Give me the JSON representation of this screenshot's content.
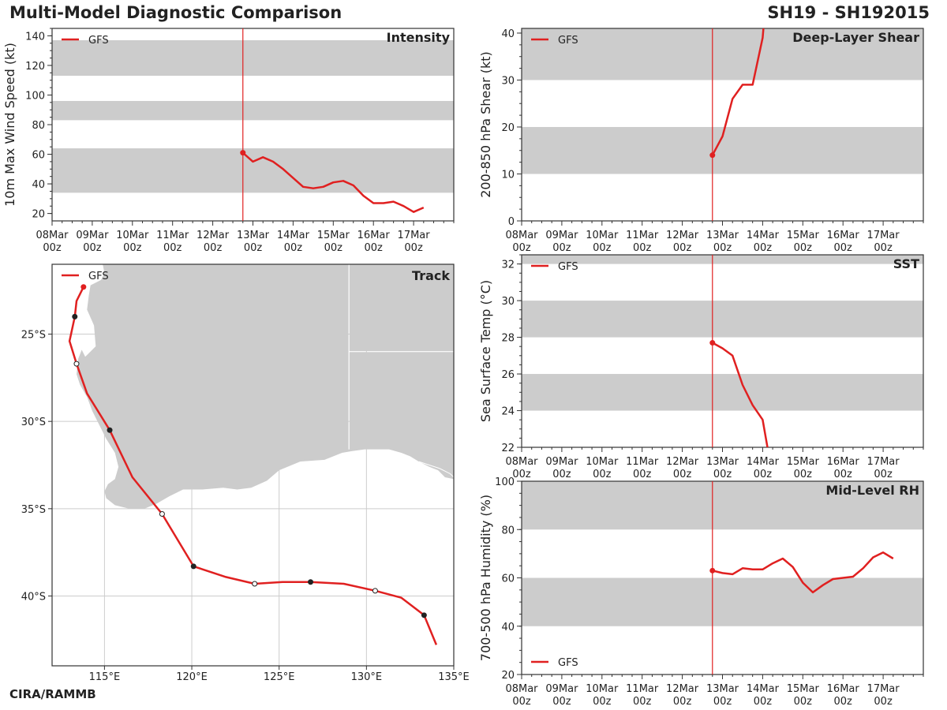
{
  "header": {
    "title": "Multi-Model Diagnostic Comparison",
    "storm": "SH19 - SH192015",
    "credit": "CIRA/RAMMB"
  },
  "colors": {
    "model": "#e02020",
    "band": "#cccccc",
    "land": "#cccccc",
    "axis": "#333333",
    "grid": "#cccccc"
  },
  "chart_data": [
    {
      "id": "intensity",
      "type": "line",
      "title": "Intensity",
      "xlabel": "",
      "ylabel": "10m Max Wind Speed (kt)",
      "xlim": [
        0,
        10
      ],
      "ylim": [
        15,
        145
      ],
      "yticks": [
        20,
        40,
        60,
        80,
        100,
        120,
        140
      ],
      "xtick_labels": [
        "08Mar 00z",
        "09Mar 00z",
        "10Mar 00z",
        "11Mar 00z",
        "12Mar 00z",
        "13Mar 00z",
        "14Mar 00z",
        "15Mar 00z",
        "16Mar 00z",
        "17Mar 00z"
      ],
      "bands": [
        [
          34,
          64
        ],
        [
          83,
          96
        ],
        [
          113,
          137
        ]
      ],
      "init_time": 4.75,
      "legend": [
        "GFS"
      ],
      "legend_loc": "top-left",
      "series": [
        {
          "name": "GFS",
          "x": [
            4.75,
            5.0,
            5.25,
            5.5,
            5.75,
            6.0,
            6.25,
            6.5,
            6.75,
            7.0,
            7.25,
            7.5,
            7.75,
            8.0,
            8.25,
            8.5,
            8.75,
            9.0,
            9.25
          ],
          "y": [
            61,
            55,
            58,
            55,
            50,
            44,
            38,
            37,
            38,
            41,
            42,
            39,
            32,
            27,
            27,
            28,
            25,
            21,
            24
          ]
        }
      ]
    },
    {
      "id": "shear",
      "type": "line",
      "title": "Deep-Layer Shear",
      "xlabel": "",
      "ylabel": "200-850 hPa Shear (kt)",
      "xlim": [
        0,
        10
      ],
      "ylim": [
        0,
        41
      ],
      "yticks": [
        0,
        10,
        20,
        30,
        40
      ],
      "xtick_labels": [
        "08Mar 00z",
        "09Mar 00z",
        "10Mar 00z",
        "11Mar 00z",
        "12Mar 00z",
        "13Mar 00z",
        "14Mar 00z",
        "15Mar 00z",
        "16Mar 00z",
        "17Mar 00z"
      ],
      "bands": [
        [
          10,
          20
        ],
        [
          30,
          41
        ]
      ],
      "init_time": 4.75,
      "legend": [
        "GFS"
      ],
      "legend_loc": "top-left",
      "series": [
        {
          "name": "GFS",
          "x": [
            4.75,
            5.0,
            5.25,
            5.5,
            5.75,
            6.0,
            6.02
          ],
          "y": [
            14,
            18,
            26,
            29,
            29,
            39,
            41
          ]
        }
      ]
    },
    {
      "id": "sst",
      "type": "line",
      "title": "SST",
      "xlabel": "",
      "ylabel": "Sea Surface Temp (°C)",
      "xlim": [
        0,
        10
      ],
      "ylim": [
        22,
        32.5
      ],
      "yticks": [
        22,
        24,
        26,
        28,
        30,
        32
      ],
      "xtick_labels": [
        "08Mar 00z",
        "09Mar 00z",
        "10Mar 00z",
        "11Mar 00z",
        "12Mar 00z",
        "13Mar 00z",
        "14Mar 00z",
        "15Mar 00z",
        "16Mar 00z",
        "17Mar 00z"
      ],
      "bands": [
        [
          24,
          26
        ],
        [
          28,
          30
        ],
        [
          32,
          32.5
        ]
      ],
      "init_time": 4.75,
      "legend": [
        "GFS"
      ],
      "legend_loc": "top-left",
      "series": [
        {
          "name": "GFS",
          "x": [
            4.75,
            5.0,
            5.25,
            5.5,
            5.75,
            6.0,
            6.12
          ],
          "y": [
            27.7,
            27.4,
            27.0,
            25.4,
            24.3,
            23.5,
            22.0
          ]
        }
      ]
    },
    {
      "id": "rh",
      "type": "line",
      "title": "Mid-Level RH",
      "xlabel": "",
      "ylabel": "700-500 hPa Humidity (%)",
      "xlim": [
        0,
        10
      ],
      "ylim": [
        20,
        100
      ],
      "yticks": [
        20,
        40,
        60,
        80,
        100
      ],
      "xtick_labels": [
        "08Mar 00z",
        "09Mar 00z",
        "10Mar 00z",
        "11Mar 00z",
        "12Mar 00z",
        "13Mar 00z",
        "14Mar 00z",
        "15Mar 00z",
        "16Mar 00z",
        "17Mar 00z"
      ],
      "bands": [
        [
          40,
          60
        ],
        [
          80,
          100
        ]
      ],
      "init_time": 4.75,
      "legend": [
        "GFS"
      ],
      "legend_loc": "bottom-left",
      "series": [
        {
          "name": "GFS",
          "x": [
            4.75,
            5.0,
            5.25,
            5.5,
            5.75,
            6.0,
            6.25,
            6.5,
            6.75,
            7.0,
            7.25,
            7.5,
            7.75,
            8.0,
            8.25,
            8.5,
            8.75,
            9.0,
            9.25
          ],
          "y": [
            63,
            62,
            61.5,
            64,
            63.5,
            63.5,
            66,
            68,
            64.5,
            58,
            54,
            57,
            59.5,
            60,
            60.5,
            64,
            68.5,
            70.5,
            68
          ]
        }
      ]
    },
    {
      "id": "track",
      "type": "line",
      "title": "Track",
      "xlabel": "",
      "ylabel": "",
      "xlim": [
        112,
        135
      ],
      "ylim": [
        -44,
        -21
      ],
      "xtick_labels": [
        "115°E",
        "120°E",
        "125°E",
        "130°E",
        "135°E"
      ],
      "xtick_values": [
        115,
        120,
        125,
        130,
        135
      ],
      "ytick_labels": [
        "25°S",
        "30°S",
        "35°S",
        "40°S"
      ],
      "ytick_values": [
        -25,
        -30,
        -35,
        -40
      ],
      "legend": [
        "GFS"
      ],
      "legend_loc": "top-left",
      "series": [
        {
          "name": "GFS",
          "lon": [
            113.8,
            113.4,
            113.3,
            113.0,
            113.4,
            114.0,
            115.3,
            116.6,
            118.3,
            120.1,
            121.9,
            123.6,
            125.2,
            126.8,
            128.7,
            130.5,
            132.0,
            133.3,
            134.0
          ],
          "lat": [
            -22.3,
            -23.1,
            -24.0,
            -25.4,
            -26.7,
            -28.4,
            -30.5,
            -33.2,
            -35.3,
            -38.3,
            -38.9,
            -39.3,
            -39.2,
            -39.2,
            -39.3,
            -39.7,
            -40.1,
            -41.1,
            -42.8
          ],
          "markers": [
            {
              "lon": 113.8,
              "lat": -22.3,
              "style": "red"
            },
            {
              "lon": 113.3,
              "lat": -24.0,
              "style": "filled"
            },
            {
              "lon": 113.4,
              "lat": -26.7,
              "style": "open"
            },
            {
              "lon": 115.3,
              "lat": -30.5,
              "style": "filled"
            },
            {
              "lon": 118.3,
              "lat": -35.3,
              "style": "open"
            },
            {
              "lon": 120.1,
              "lat": -38.3,
              "style": "filled"
            },
            {
              "lon": 123.6,
              "lat": -39.3,
              "style": "open"
            },
            {
              "lon": 126.8,
              "lat": -39.2,
              "style": "filled"
            },
            {
              "lon": 130.5,
              "lat": -39.7,
              "style": "open"
            },
            {
              "lon": 133.3,
              "lat": -41.1,
              "style": "filled"
            }
          ]
        }
      ],
      "land_outline": {
        "lon": [
          112.0,
          114.9,
          115.0,
          114.8,
          114.2,
          114.1,
          114.0,
          114.4,
          114.5,
          113.9,
          113.7,
          113.5,
          113.4,
          113.6,
          114.0,
          114.3,
          114.7,
          115.1,
          115.6,
          115.8,
          115.6,
          115.2,
          115.0,
          115.1,
          115.6,
          116.4,
          117.3,
          118.0,
          118.7,
          119.5,
          120.6,
          121.8,
          122.6,
          123.4,
          124.3,
          125.0,
          126.2,
          127.6,
          128.6,
          129.2,
          129.9,
          130.5,
          131.3,
          132.0,
          132.5,
          133.0,
          133.6,
          134.1,
          134.5,
          135.0,
          135.0,
          112.0
        ],
        "lat": [
          -21.0,
          -21.0,
          -21.5,
          -21.9,
          -22.2,
          -22.8,
          -23.6,
          -24.5,
          -25.7,
          -26.3,
          -25.9,
          -26.4,
          -27.3,
          -27.9,
          -28.6,
          -29.4,
          -30.2,
          -31.0,
          -31.8,
          -32.6,
          -33.3,
          -33.6,
          -34.0,
          -34.4,
          -34.8,
          -35.0,
          -35.0,
          -34.7,
          -34.3,
          -33.9,
          -33.9,
          -33.8,
          -33.9,
          -33.8,
          -33.4,
          -32.8,
          -32.3,
          -32.2,
          -31.8,
          -31.7,
          -31.6,
          -31.6,
          -31.6,
          -31.8,
          -32.0,
          -32.3,
          -32.6,
          -32.8,
          -33.2,
          -33.3,
          -21.0,
          -21.0
        ]
      },
      "gulf_boundary": {
        "lon": [
          133.0,
          133.6,
          134.2,
          134.8,
          135.0
        ],
        "lat": [
          -32.3,
          -32.5,
          -32.7,
          -33.0,
          -33.2
        ]
      },
      "borders": [
        {
          "lon": [
            129.0,
            129.0
          ],
          "lat": [
            -21.0,
            -31.6
          ]
        },
        {
          "lon": [
            129.0,
            135.0
          ],
          "lat": [
            -26.0,
            -26.0
          ]
        }
      ]
    }
  ]
}
